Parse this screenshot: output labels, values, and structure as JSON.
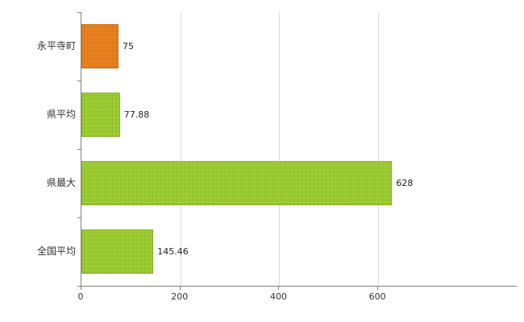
{
  "chart_data": {
    "type": "bar",
    "orientation": "horizontal",
    "title": "",
    "xlabel": "",
    "ylabel": "",
    "categories": [
      "永平寺町",
      "県平均",
      "県最大",
      "全国平均"
    ],
    "values": [
      75,
      77.88,
      628,
      145.46
    ],
    "value_labels": [
      "75",
      "77.88",
      "628",
      "145.46"
    ],
    "bar_colors": [
      "#e8801f",
      "#9ccd33",
      "#9ccd33",
      "#9ccd33"
    ],
    "xlim": [
      0,
      880
    ],
    "x_ticks": [
      0,
      200,
      400,
      600
    ],
    "x_tick_labels": [
      "0",
      "200",
      "400",
      "600"
    ],
    "grid": true,
    "legend": false
  },
  "colors": {
    "grid": "#dddddd",
    "axis": "#808080",
    "text": "#333333",
    "background": "#ffffff"
  }
}
